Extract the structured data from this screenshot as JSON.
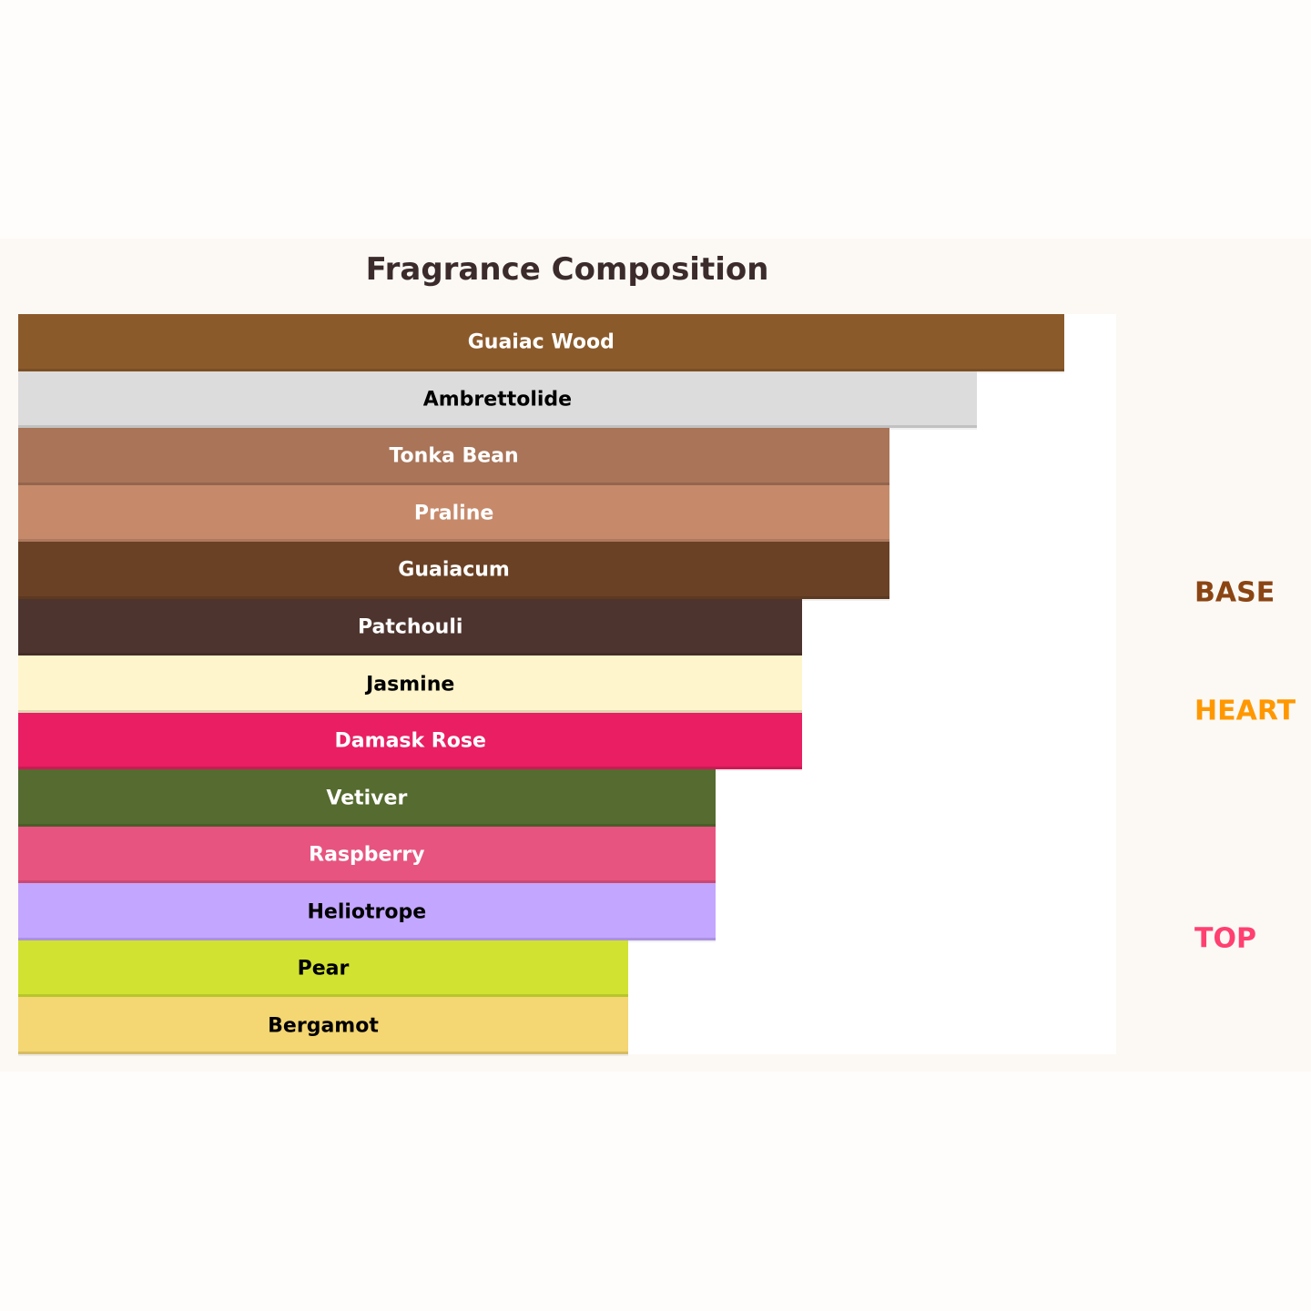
{
  "chart_data": {
    "type": "bar",
    "orientation": "horizontal",
    "title": "Fragrance Composition",
    "categories": [
      "Guaiac Wood",
      "Ambrettolide",
      "Tonka Bean",
      "Praline",
      "Guaiacum",
      "Patchouli",
      "Jasmine",
      "Damask Rose",
      "Vetiver",
      "Raspberry",
      "Heliotrope",
      "Pear",
      "Bergamot"
    ],
    "values": [
      12,
      11,
      10,
      10,
      10,
      9,
      9,
      9,
      8,
      8,
      8,
      7,
      7
    ],
    "colors": [
      "#8B5A2B",
      "#DCDCDC",
      "#A97458",
      "#C68A6B",
      "#6A4125",
      "#4E342E",
      "#FFF5CC",
      "#E91E63",
      "#556B2F",
      "#E75480",
      "#C3A6FF",
      "#D1E231",
      "#F4D672"
    ],
    "label_colors": [
      "#ffffff",
      "#000000",
      "#ffffff",
      "#ffffff",
      "#ffffff",
      "#ffffff",
      "#000000",
      "#ffffff",
      "#ffffff",
      "#ffffff",
      "#000000",
      "#000000",
      "#000000"
    ],
    "xlim": [
      0,
      12.6
    ],
    "grid": false,
    "stage_labels": [
      {
        "text": "BASE",
        "color": "#8B4513"
      },
      {
        "text": "HEART",
        "color": "#FF9800"
      },
      {
        "text": "TOP",
        "color": "#FF4070"
      }
    ]
  }
}
